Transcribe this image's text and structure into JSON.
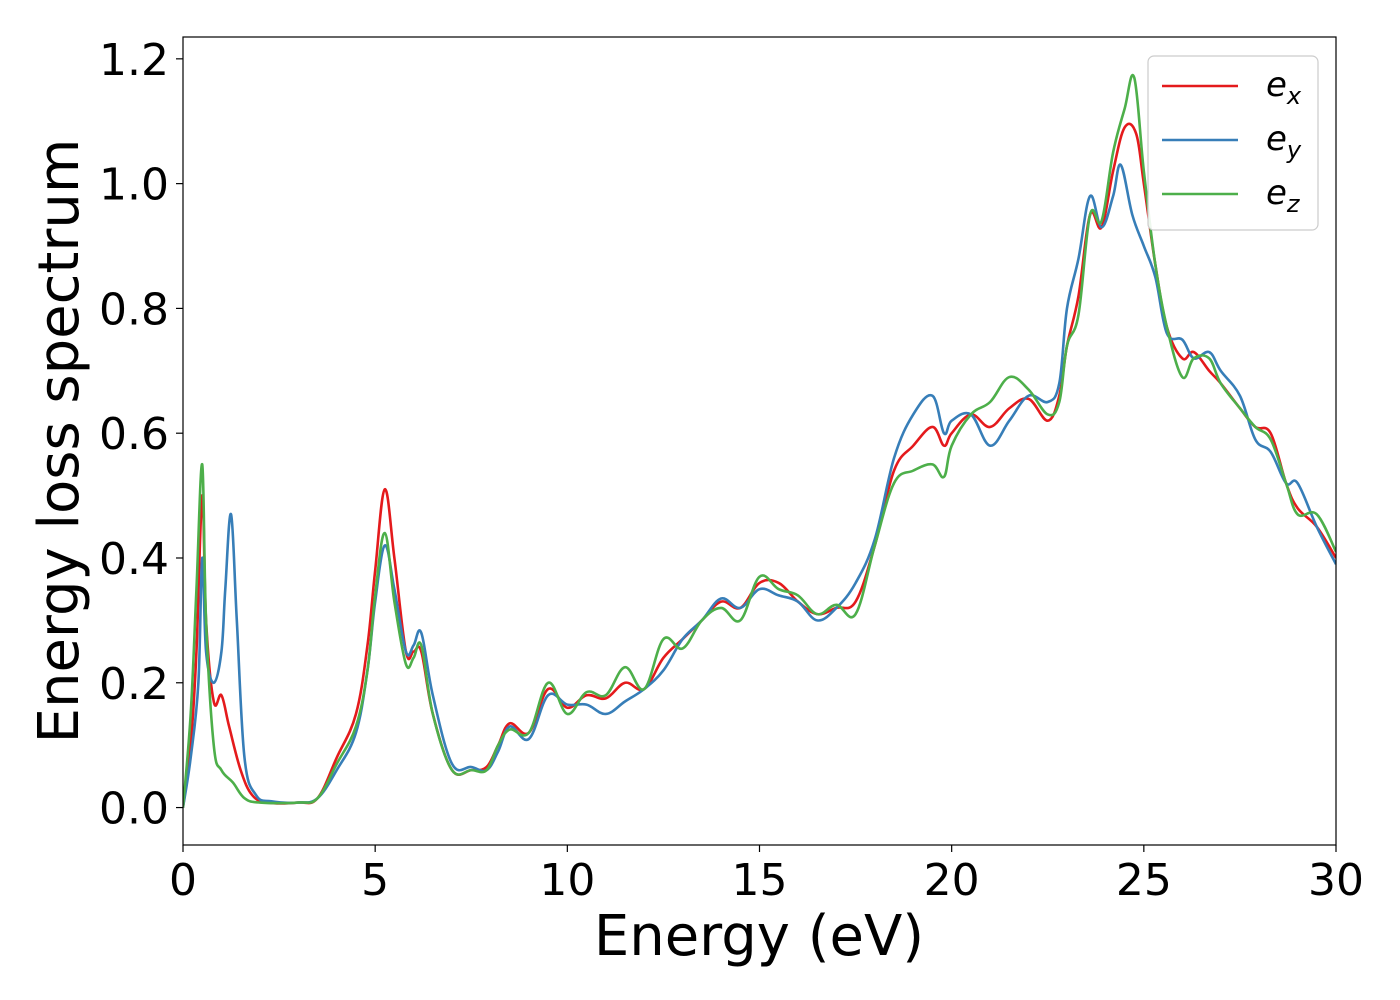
{
  "chart_data": {
    "type": "line",
    "title": "",
    "xlabel": "Energy (eV)",
    "ylabel": "Energy loss spectrum",
    "xlim": [
      0,
      30
    ],
    "ylim": [
      -0.06,
      1.235
    ],
    "xticks": [
      0,
      5,
      10,
      15,
      20,
      25,
      30
    ],
    "xtick_labels": [
      "0",
      "5",
      "10",
      "15",
      "20",
      "25",
      "30"
    ],
    "yticks": [
      0.0,
      0.2,
      0.4,
      0.6,
      0.8,
      1.0,
      1.2
    ],
    "ytick_labels": [
      "0.0",
      "0.2",
      "0.4",
      "0.6",
      "0.8",
      "1.0",
      "1.2"
    ],
    "grid": false,
    "legend_position": "top-right",
    "series": [
      {
        "name": "e",
        "subscript": "x",
        "color": "#e41a1c",
        "x": [
          0,
          0.2,
          0.35,
          0.5,
          0.6,
          0.8,
          1.0,
          1.2,
          1.5,
          1.8,
          2.2,
          3.0,
          3.5,
          4.0,
          4.5,
          4.8,
          5.0,
          5.25,
          5.5,
          5.8,
          6.0,
          6.2,
          6.5,
          7.0,
          7.5,
          7.9,
          8.2,
          8.5,
          9.0,
          9.5,
          10.0,
          10.5,
          11.0,
          11.5,
          12.0,
          12.5,
          13.0,
          13.5,
          14.0,
          14.5,
          15.0,
          15.5,
          16.0,
          16.5,
          17.0,
          17.5,
          18.0,
          18.5,
          19.0,
          19.5,
          19.8,
          20.0,
          20.5,
          21.0,
          21.5,
          22.0,
          22.5,
          22.8,
          23.0,
          23.3,
          23.6,
          23.9,
          24.2,
          24.5,
          24.8,
          25.0,
          25.3,
          25.6,
          26.0,
          26.3,
          26.7,
          27.0,
          27.5,
          27.9,
          28.3,
          28.7,
          29.0,
          29.5,
          30.0
        ],
        "y": [
          0.0,
          0.1,
          0.25,
          0.5,
          0.3,
          0.17,
          0.18,
          0.13,
          0.06,
          0.02,
          0.008,
          0.008,
          0.015,
          0.08,
          0.15,
          0.26,
          0.38,
          0.51,
          0.4,
          0.25,
          0.25,
          0.25,
          0.15,
          0.06,
          0.06,
          0.065,
          0.1,
          0.135,
          0.12,
          0.19,
          0.16,
          0.18,
          0.175,
          0.2,
          0.19,
          0.24,
          0.27,
          0.3,
          0.33,
          0.32,
          0.36,
          0.36,
          0.33,
          0.31,
          0.32,
          0.33,
          0.42,
          0.54,
          0.58,
          0.61,
          0.58,
          0.6,
          0.63,
          0.61,
          0.64,
          0.655,
          0.62,
          0.66,
          0.74,
          0.82,
          0.95,
          0.93,
          1.02,
          1.09,
          1.08,
          1.0,
          0.87,
          0.77,
          0.72,
          0.73,
          0.7,
          0.68,
          0.64,
          0.61,
          0.6,
          0.52,
          0.48,
          0.45,
          0.4
        ]
      },
      {
        "name": "e",
        "subscript": "y",
        "color": "#377eb8",
        "x": [
          0,
          0.2,
          0.4,
          0.5,
          0.6,
          0.8,
          1.0,
          1.1,
          1.25,
          1.4,
          1.6,
          1.9,
          2.3,
          3.0,
          3.5,
          4.0,
          4.5,
          4.8,
          5.0,
          5.25,
          5.5,
          5.8,
          6.0,
          6.2,
          6.5,
          7.0,
          7.5,
          7.9,
          8.2,
          8.5,
          9.0,
          9.5,
          10.0,
          10.5,
          11.0,
          11.5,
          12.0,
          12.5,
          13.0,
          13.5,
          14.0,
          14.5,
          15.0,
          15.5,
          16.0,
          16.5,
          17.0,
          17.5,
          18.0,
          18.5,
          19.0,
          19.5,
          19.8,
          20.0,
          20.5,
          21.0,
          21.5,
          22.0,
          22.5,
          22.8,
          23.0,
          23.3,
          23.6,
          23.9,
          24.2,
          24.4,
          24.7,
          25.0,
          25.3,
          25.6,
          26.0,
          26.3,
          26.7,
          27.0,
          27.5,
          27.9,
          28.3,
          28.7,
          29.0,
          29.5,
          30.0
        ],
        "y": [
          0.0,
          0.08,
          0.2,
          0.4,
          0.25,
          0.2,
          0.25,
          0.35,
          0.47,
          0.3,
          0.08,
          0.02,
          0.01,
          0.008,
          0.015,
          0.06,
          0.12,
          0.22,
          0.33,
          0.42,
          0.35,
          0.25,
          0.26,
          0.28,
          0.18,
          0.07,
          0.065,
          0.06,
          0.09,
          0.13,
          0.11,
          0.18,
          0.165,
          0.165,
          0.15,
          0.17,
          0.19,
          0.22,
          0.27,
          0.3,
          0.335,
          0.32,
          0.35,
          0.34,
          0.33,
          0.3,
          0.32,
          0.36,
          0.43,
          0.56,
          0.63,
          0.66,
          0.6,
          0.62,
          0.63,
          0.58,
          0.62,
          0.66,
          0.65,
          0.68,
          0.8,
          0.88,
          0.98,
          0.93,
          0.98,
          1.03,
          0.95,
          0.9,
          0.85,
          0.76,
          0.75,
          0.72,
          0.73,
          0.7,
          0.66,
          0.59,
          0.57,
          0.52,
          0.52,
          0.45,
          0.39
        ]
      },
      {
        "name": "e",
        "subscript": "z",
        "color": "#4daf4a",
        "x": [
          0,
          0.2,
          0.35,
          0.5,
          0.6,
          0.8,
          1.0,
          1.3,
          1.6,
          2.0,
          3.0,
          3.5,
          4.0,
          4.5,
          4.8,
          5.0,
          5.25,
          5.5,
          5.8,
          6.0,
          6.2,
          6.5,
          7.0,
          7.5,
          7.9,
          8.2,
          8.5,
          9.0,
          9.5,
          10.0,
          10.5,
          11.0,
          11.5,
          12.0,
          12.5,
          13.0,
          13.5,
          14.0,
          14.5,
          15.0,
          15.5,
          16.0,
          16.5,
          17.0,
          17.5,
          18.0,
          18.5,
          19.0,
          19.5,
          19.8,
          20.0,
          20.5,
          21.0,
          21.5,
          22.0,
          22.5,
          22.8,
          23.0,
          23.3,
          23.6,
          23.9,
          24.2,
          24.5,
          24.75,
          25.0,
          25.3,
          25.6,
          26.0,
          26.3,
          26.7,
          27.0,
          27.5,
          27.9,
          28.3,
          28.7,
          29.0,
          29.5,
          30.0
        ],
        "y": [
          0.0,
          0.15,
          0.35,
          0.55,
          0.3,
          0.1,
          0.06,
          0.04,
          0.015,
          0.008,
          0.008,
          0.015,
          0.07,
          0.13,
          0.22,
          0.34,
          0.44,
          0.33,
          0.23,
          0.24,
          0.26,
          0.15,
          0.06,
          0.06,
          0.06,
          0.1,
          0.125,
          0.12,
          0.2,
          0.15,
          0.185,
          0.18,
          0.225,
          0.19,
          0.27,
          0.255,
          0.3,
          0.32,
          0.3,
          0.37,
          0.35,
          0.34,
          0.31,
          0.325,
          0.31,
          0.42,
          0.52,
          0.54,
          0.55,
          0.53,
          0.58,
          0.63,
          0.65,
          0.69,
          0.67,
          0.63,
          0.65,
          0.74,
          0.79,
          0.95,
          0.94,
          1.05,
          1.12,
          1.17,
          1.02,
          0.87,
          0.77,
          0.69,
          0.72,
          0.72,
          0.68,
          0.64,
          0.61,
          0.59,
          0.52,
          0.47,
          0.47,
          0.41
        ]
      }
    ]
  }
}
